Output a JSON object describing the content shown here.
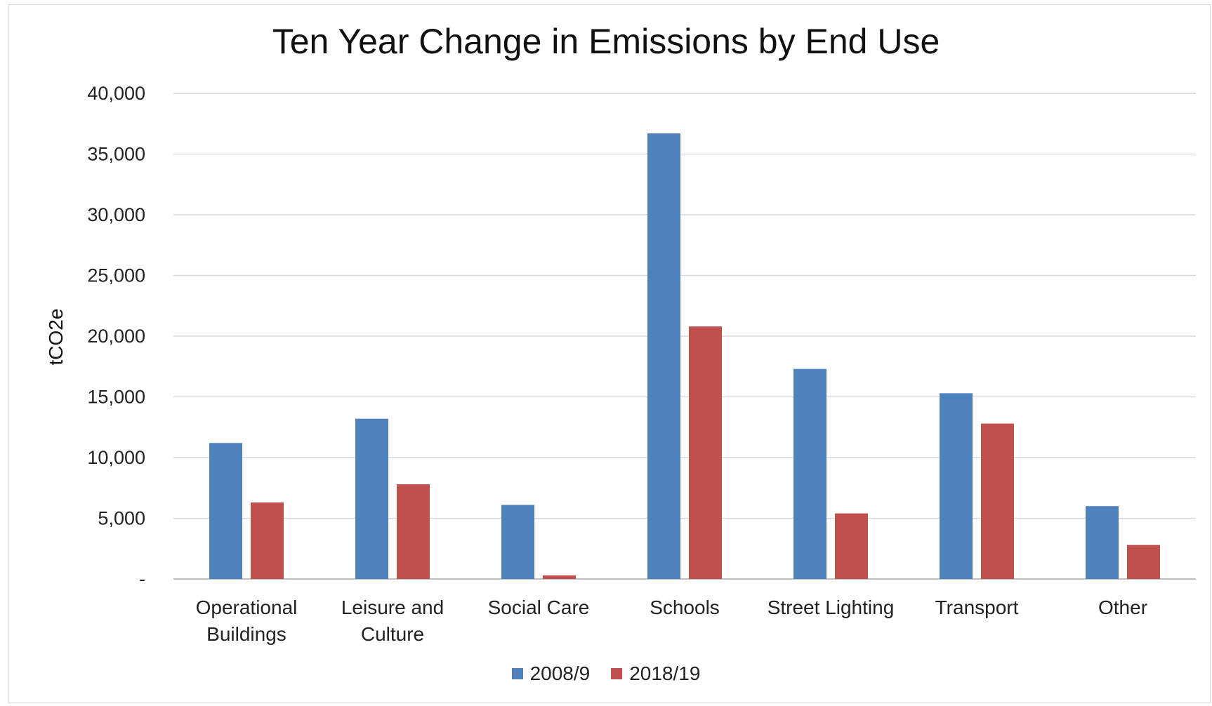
{
  "chart_data": {
    "type": "bar",
    "title": "Ten Year Change in Emissions by End Use",
    "ylabel": "tCO2e",
    "xlabel": "",
    "categories": [
      [
        "Operational",
        "Buildings"
      ],
      [
        "Leisure and",
        "Culture"
      ],
      [
        "Social Care"
      ],
      [
        "Schools"
      ],
      [
        "Street Lighting"
      ],
      [
        "Transport"
      ],
      [
        "Other"
      ]
    ],
    "series": [
      {
        "name": "2008/9",
        "color": "#4f81bd",
        "values": [
          11200,
          13200,
          6100,
          36700,
          17300,
          15300,
          6000
        ]
      },
      {
        "name": "2018/19",
        "color": "#c0504d",
        "values": [
          6300,
          7800,
          300,
          20800,
          5400,
          12800,
          2800
        ]
      }
    ],
    "ylim": [
      0,
      40000
    ],
    "yticks": [
      0,
      5000,
      10000,
      15000,
      20000,
      25000,
      30000,
      35000,
      40000
    ],
    "ytick_labels": [
      "-",
      "5,000",
      "10,000",
      "15,000",
      "20,000",
      "25,000",
      "30,000",
      "35,000",
      "40,000"
    ],
    "grid": true,
    "legend_position": "bottom"
  }
}
